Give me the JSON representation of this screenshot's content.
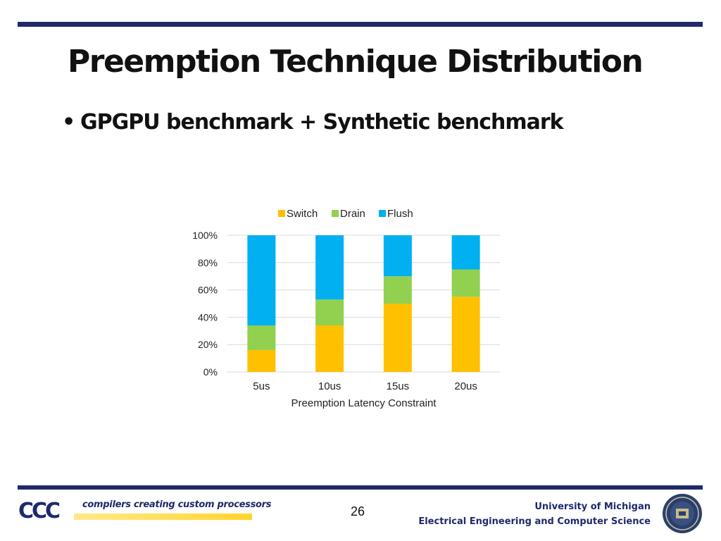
{
  "slide": {
    "title": "Preemption Technique Distribution",
    "bullet": "GPGPU benchmark + Synthetic benchmark",
    "page_number": "26"
  },
  "footer": {
    "logo_text": "CCC",
    "tagline": "compilers creating custom processors",
    "university": "University of Michigan",
    "department": "Electrical Engineering and Computer Science"
  },
  "chart_data": {
    "type": "bar",
    "stacked": true,
    "categories": [
      "5us",
      "10us",
      "15us",
      "20us"
    ],
    "series": [
      {
        "name": "Switch",
        "color": "#ffc000",
        "values": [
          16,
          34,
          50,
          55
        ]
      },
      {
        "name": "Drain",
        "color": "#92d050",
        "values": [
          18,
          19,
          20,
          20
        ]
      },
      {
        "name": "Flush",
        "color": "#00b0f0",
        "values": [
          66,
          47,
          30,
          25
        ]
      }
    ],
    "xlabel": "Preemption Latency Constraint",
    "ylabel": "",
    "ylim": [
      0,
      100
    ],
    "yticks": [
      "0%",
      "20%",
      "40%",
      "60%",
      "80%",
      "100%"
    ],
    "grid": true,
    "legend_position": "top"
  }
}
